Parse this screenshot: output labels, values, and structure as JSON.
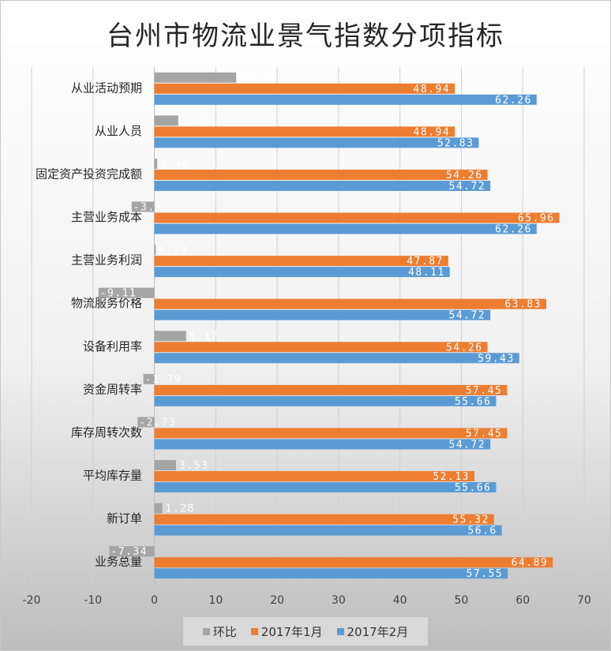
{
  "chart_data": {
    "type": "bar",
    "orientation": "horizontal",
    "title": "台州市物流业景气指数分项指标",
    "categories": [
      "从业活动预期",
      "从业人员",
      "固定资产投资完成额",
      "主营业务成本",
      "主营业务利润",
      "物流服务价格",
      "设备利用率",
      "资金周转率",
      "库存周转次数",
      "平均库存量",
      "新订单",
      "业务总量"
    ],
    "series": [
      {
        "name": "环比",
        "color": "#a5a5a5",
        "values": [
          13.32,
          3.89,
          0.46,
          -3.7,
          0.24,
          -9.11,
          5.17,
          -1.79,
          -2.73,
          3.53,
          1.28,
          -7.34
        ],
        "labels": [
          "13.32",
          "3.89",
          "0.46",
          "-3.7",
          "0.24",
          "-9.11",
          "5.17",
          "-1.79",
          "-2.73",
          "3.53",
          "1.28",
          "-7.34"
        ]
      },
      {
        "name": "2017年1月",
        "color": "#ed7d31",
        "values": [
          48.94,
          48.94,
          54.26,
          65.96,
          47.87,
          63.83,
          54.26,
          57.45,
          57.45,
          52.13,
          55.32,
          64.89
        ],
        "labels": [
          "48.94",
          "48.94",
          "54.26",
          "65.96",
          "47.87",
          "63.83",
          "54.26",
          "57.45",
          "57.45",
          "52.13",
          "55.32",
          "64.89"
        ]
      },
      {
        "name": "2017年2月",
        "color": "#5b9bd5",
        "values": [
          62.26,
          52.83,
          54.72,
          62.26,
          48.11,
          54.72,
          59.43,
          55.66,
          54.72,
          55.66,
          56.6,
          57.55
        ],
        "labels": [
          "62.26",
          "52.83",
          "54.72",
          "62.26",
          "48.11",
          "54.72",
          "59.43",
          "55.66",
          "54.72",
          "55.66",
          "56.6",
          "57.55"
        ]
      }
    ],
    "xlim": [
      -20,
      70
    ],
    "xticks": [
      "-20",
      "-10",
      "0",
      "10",
      "20",
      "30",
      "40",
      "50",
      "60",
      "70"
    ],
    "grid": true,
    "legend_position": "bottom"
  }
}
